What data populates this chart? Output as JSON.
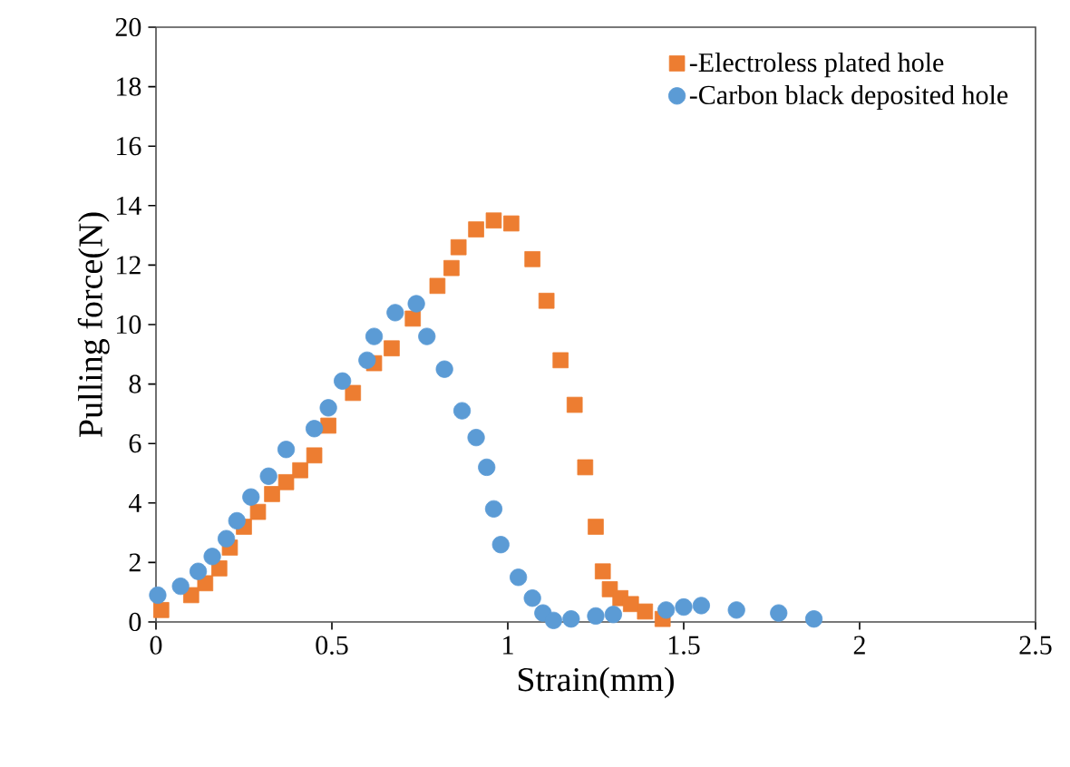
{
  "chart_data": {
    "type": "scatter",
    "xlabel": "Strain(mm)",
    "ylabel": "Pulling  force(N)",
    "xlim": [
      0,
      2.5
    ],
    "ylim": [
      0,
      20
    ],
    "xticks": [
      0,
      0.5,
      1,
      1.5,
      2,
      2.5
    ],
    "yticks": [
      0,
      2,
      4,
      6,
      8,
      10,
      12,
      14,
      16,
      18,
      20
    ],
    "grid": false,
    "legend": "top right",
    "series": [
      {
        "name": "-Electroless plated hole",
        "color": "#ed7d31",
        "marker": "square",
        "x": [
          0.015,
          0.1,
          0.14,
          0.18,
          0.21,
          0.25,
          0.29,
          0.33,
          0.37,
          0.41,
          0.45,
          0.48,
          0.49,
          0.56,
          0.62,
          0.67,
          0.73,
          0.8,
          0.84,
          0.86,
          0.91,
          0.96,
          1.01,
          1.07,
          1.11,
          1.15,
          1.19,
          1.22,
          1.25,
          1.27,
          1.29,
          1.32,
          1.35,
          1.39,
          1.44
        ],
        "values": [
          0.4,
          0.9,
          1.3,
          1.8,
          2.5,
          3.2,
          3.7,
          4.3,
          4.7,
          5.1,
          5.6,
          null,
          6.6,
          7.7,
          8.7,
          9.2,
          10.2,
          11.3,
          11.9,
          12.6,
          13.2,
          13.5,
          13.4,
          12.2,
          10.8,
          8.8,
          7.3,
          5.2,
          3.2,
          1.7,
          1.1,
          0.8,
          0.6,
          0.35,
          0.1
        ]
      },
      {
        "name": "-Carbon black deposited hole",
        "color": "#5b9bd5",
        "marker": "circle",
        "x": [
          0.005,
          0.07,
          0.12,
          0.16,
          0.2,
          0.23,
          0.27,
          0.32,
          0.37,
          0.45,
          0.49,
          0.53,
          0.6,
          0.62,
          0.68,
          0.74,
          0.77,
          0.82,
          0.87,
          0.91,
          0.94,
          0.96,
          0.98,
          1.03,
          1.07,
          1.1,
          1.13,
          1.18,
          1.25,
          1.3,
          1.45,
          1.5,
          1.55,
          1.65,
          1.77,
          1.87
        ],
        "values": [
          0.9,
          1.2,
          1.7,
          2.2,
          2.8,
          3.4,
          4.2,
          4.9,
          5.8,
          6.5,
          7.2,
          8.1,
          8.8,
          9.6,
          10.4,
          10.7,
          9.6,
          8.5,
          7.1,
          6.2,
          5.2,
          3.8,
          2.6,
          1.5,
          0.8,
          0.3,
          0.05,
          0.1,
          0.2,
          0.25,
          0.4,
          0.5,
          0.55,
          0.4,
          0.3,
          0.1
        ]
      }
    ]
  }
}
